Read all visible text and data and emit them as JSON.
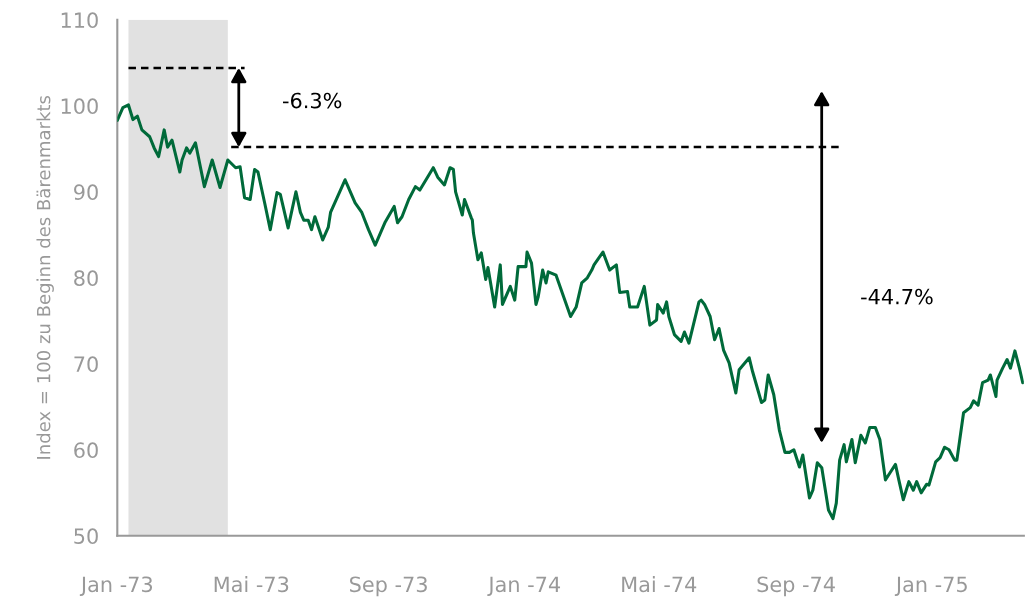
{
  "chart_data": {
    "type": "line",
    "ylabel": "Index = 100 zu Beginn des Bärenmarkts",
    "xlim": [
      "1973-01-01",
      "1975-03-24"
    ],
    "ylim": [
      50,
      110
    ],
    "yticks": [
      50,
      60,
      70,
      80,
      90,
      100,
      110
    ],
    "xticks": [
      {
        "value": "1973-01-01",
        "label": "Jan -73"
      },
      {
        "value": "1973-05-01",
        "label": "Mai -73"
      },
      {
        "value": "1973-09-01",
        "label": "Sep -73"
      },
      {
        "value": "1974-01-01",
        "label": "Jan -74"
      },
      {
        "value": "1974-05-01",
        "label": "Mai -74"
      },
      {
        "value": "1974-09-01",
        "label": "Sep -74"
      },
      {
        "value": "1975-01-01",
        "label": "Jan -75"
      }
    ],
    "grid": false,
    "legend": false,
    "bands": [
      {
        "axis": "x",
        "from": "1973-01-11",
        "to": "1973-04-10",
        "color": "#e1e1e1"
      }
    ],
    "annotations": [
      "-6.3%",
      "-44.7%"
    ],
    "series": [
      {
        "type": "line",
        "color": "#006a3a",
        "line_style": "solid",
        "x": [
          "1973-01-01",
          "1973-01-06",
          "1973-01-11",
          "1973-01-15",
          "1973-01-19",
          "1973-01-23",
          "1973-01-30",
          "1973-02-03",
          "1973-02-07",
          "1973-02-12",
          "1973-02-15",
          "1973-02-19",
          "1973-02-26",
          "1973-02-28",
          "1973-03-04",
          "1973-03-07",
          "1973-03-12",
          "1973-03-20",
          "1973-03-27",
          "1973-04-03",
          "1973-04-10",
          "1973-04-17",
          "1973-04-21",
          "1973-04-25",
          "1973-04-30",
          "1973-05-04",
          "1973-05-07",
          "1973-05-13",
          "1973-05-18",
          "1973-05-24",
          "1973-05-27",
          "1973-06-03",
          "1973-06-10",
          "1973-06-14",
          "1973-06-17",
          "1973-06-21",
          "1973-06-24",
          "1973-06-27",
          "1973-07-04",
          "1973-07-09",
          "1973-07-11",
          "1973-07-24",
          "1973-07-26",
          "1973-08-02",
          "1973-08-08",
          "1973-08-14",
          "1973-08-20",
          "1973-08-29",
          "1973-09-06",
          "1973-09-09",
          "1973-09-13",
          "1973-09-19",
          "1973-09-25",
          "1973-09-29",
          "1973-10-11",
          "1973-10-15",
          "1973-10-21",
          "1973-10-26",
          "1973-10-29",
          "1973-10-31",
          "1973-11-06",
          "1973-11-08",
          "1973-11-14",
          "1973-11-15",
          "1973-11-16",
          "1973-11-20",
          "1973-11-23",
          "1973-11-27",
          "1973-11-29",
          "1973-12-05",
          "1973-12-10",
          "1973-12-12",
          "1973-12-19",
          "1973-12-23",
          "1973-12-26",
          "1974-01-02",
          "1974-01-03",
          "1974-01-07",
          "1974-01-11",
          "1974-01-13",
          "1974-01-17",
          "1974-01-20",
          "1974-01-22",
          "1974-01-29",
          "1974-02-05",
          "1974-02-11",
          "1974-02-16",
          "1974-02-21",
          "1974-02-26",
          "1974-03-02",
          "1974-03-04",
          "1974-03-12",
          "1974-03-18",
          "1974-03-24",
          "1974-03-27",
          "1974-04-03",
          "1974-04-05",
          "1974-04-12",
          "1974-04-18",
          "1974-04-23",
          "1974-04-29",
          "1974-04-30",
          "1974-05-05",
          "1974-05-08",
          "1974-05-10",
          "1974-05-15",
          "1974-05-21",
          "1974-05-24",
          "1974-05-28",
          "1974-06-06",
          "1974-06-08",
          "1974-06-11",
          "1974-06-16",
          "1974-06-20",
          "1974-06-24",
          "1974-06-28",
          "1974-07-03",
          "1974-07-09",
          "1974-07-12",
          "1974-07-21",
          "1974-07-24",
          "1974-08-01",
          "1974-08-04",
          "1974-08-07",
          "1974-08-12",
          "1974-08-17",
          "1974-08-22",
          "1974-08-26",
          "1974-08-30",
          "1974-09-04",
          "1974-09-07",
          "1974-09-13",
          "1974-09-16",
          "1974-09-20",
          "1974-09-24",
          "1974-09-30",
          "1974-10-04",
          "1974-10-07",
          "1974-10-10",
          "1974-10-14",
          "1974-10-16",
          "1974-10-21",
          "1974-10-24",
          "1974-10-29",
          "1974-11-02",
          "1974-11-06",
          "1974-11-11",
          "1974-11-15",
          "1974-11-20",
          "1974-11-24",
          "1974-11-29",
          "1974-12-02",
          "1974-12-06",
          "1974-12-11",
          "1974-12-15",
          "1974-12-18",
          "1974-12-22",
          "1974-12-27",
          "1974-12-29",
          "1975-01-04",
          "1975-01-08",
          "1975-01-12",
          "1975-01-16",
          "1975-01-21",
          "1975-01-23",
          "1975-01-29",
          "1975-02-04",
          "1975-02-07",
          "1975-02-11",
          "1975-02-15",
          "1975-02-20",
          "1975-02-22",
          "1975-02-27",
          "1975-02-28",
          "1975-03-05",
          "1975-03-09",
          "1975-03-12",
          "1975-03-16",
          "1975-03-20",
          "1975-03-23"
        ],
        "values": [
          98.3,
          99.8,
          100.1,
          98.4,
          98.8,
          97.2,
          96.4,
          95.1,
          94.1,
          97.2,
          95.2,
          96.0,
          92.3,
          93.7,
          95.1,
          94.5,
          95.7,
          90.6,
          93.7,
          90.5,
          93.7,
          92.8,
          92.9,
          89.3,
          89.1,
          92.6,
          92.3,
          88.7,
          85.6,
          89.9,
          89.7,
          85.8,
          90.0,
          87.6,
          86.7,
          86.7,
          85.6,
          87.1,
          84.4,
          85.9,
          87.6,
          91.4,
          90.8,
          88.7,
          87.6,
          85.6,
          83.8,
          86.5,
          88.3,
          86.4,
          87.1,
          89.1,
          90.6,
          90.2,
          92.8,
          91.7,
          90.8,
          92.8,
          92.6,
          90.0,
          87.3,
          89.1,
          87.0,
          86.7,
          85.2,
          82.1,
          82.9,
          79.8,
          81.2,
          76.6,
          81.5,
          76.9,
          79.0,
          77.4,
          81.3,
          81.3,
          83.0,
          81.7,
          76.9,
          77.8,
          80.9,
          79.4,
          80.7,
          80.3,
          77.7,
          75.5,
          76.6,
          79.4,
          80.0,
          80.9,
          81.5,
          83.0,
          80.9,
          81.5,
          78.3,
          78.4,
          76.6,
          76.6,
          79.0,
          74.5,
          75.1,
          76.9,
          75.9,
          77.2,
          75.5,
          73.4,
          72.6,
          73.7,
          72.4,
          77.2,
          77.4,
          76.9,
          75.5,
          72.8,
          74.1,
          71.6,
          70.1,
          66.6,
          69.3,
          70.7,
          69.1,
          65.5,
          65.8,
          68.7,
          66.4,
          62.3,
          59.7,
          59.7,
          60.0,
          58.0,
          59.4,
          54.4,
          55.3,
          58.5,
          57.9,
          53.0,
          52.0,
          53.8,
          58.8,
          60.6,
          58.6,
          61.2,
          58.5,
          61.7,
          60.8,
          62.6,
          62.6,
          61.2,
          56.5,
          57.3,
          58.3,
          56.5,
          54.2,
          56.3,
          55.3,
          56.3,
          55.0,
          56.0,
          55.9,
          58.6,
          59.1,
          60.3,
          60.0,
          58.8,
          58.8,
          64.3,
          64.9,
          65.7,
          65.2,
          67.8,
          68.1,
          68.7,
          66.2,
          68.1,
          69.5,
          70.5,
          69.5,
          71.5,
          69.5,
          67.8
        ]
      },
      {
        "type": "line",
        "color": "#000000",
        "line_style": "dashed",
        "x": [
          "1973-01-11",
          "1973-04-25"
        ],
        "values": [
          104.4,
          104.4
        ]
      },
      {
        "type": "line",
        "color": "#000000",
        "line_style": "dashed",
        "x": [
          "1973-04-13",
          "1974-10-12"
        ],
        "values": [
          95.2,
          95.2
        ]
      }
    ]
  }
}
